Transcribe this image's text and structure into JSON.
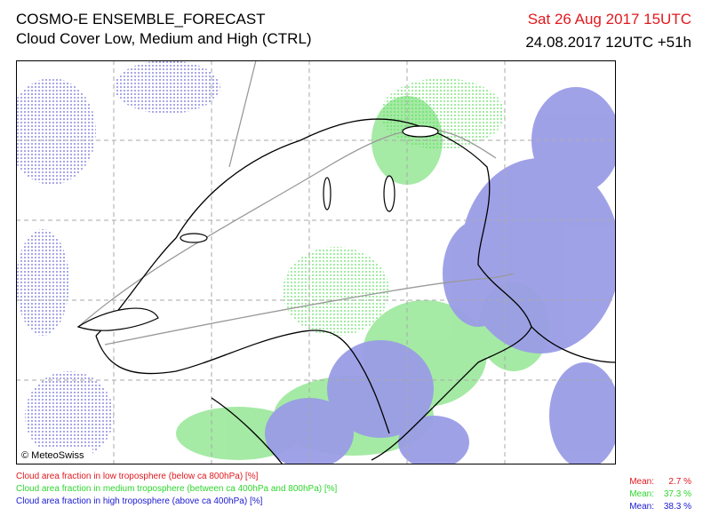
{
  "header": {
    "title": "COSMO-E ENSEMBLE_FORECAST",
    "subtitle": "Cloud Cover Low, Medium and High (CTRL)",
    "valid_time": "Sat 26 Aug 2017 15UTC",
    "run_time": "24.08.2017 12UTC +51h"
  },
  "map": {
    "credit": "© MeteoSwiss"
  },
  "legend": {
    "items": [
      {
        "label": "Cloud area fraction in low troposphere (below ca 800hPa) [%]",
        "mean_label": "Mean:",
        "mean": "2.7 %"
      },
      {
        "label": "Cloud area fraction in medium troposphere (between ca 400hPa and 800hPa) [%]",
        "mean_label": "Mean:",
        "mean": "37.3 %"
      },
      {
        "label": "Cloud area fraction in high troposphere (above ca 400hPa) [%]",
        "mean_label": "Mean:",
        "mean": "38.3 %"
      }
    ]
  }
}
